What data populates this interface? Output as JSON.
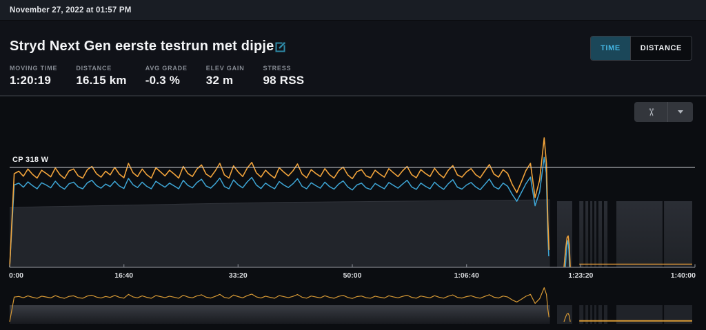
{
  "header": {
    "date": "November 27, 2022 at 01:57 PM",
    "title": "Stryd Next Gen eerste testrun met dipje"
  },
  "toggle": {
    "time_label": "TIME",
    "distance_label": "DISTANCE",
    "selected": "TIME"
  },
  "stats": {
    "items": [
      {
        "label": "MOVING TIME",
        "value": "1:20:19"
      },
      {
        "label": "DISTANCE",
        "value": "16.15 km"
      },
      {
        "label": "AVG GRADE",
        "value": "-0.3 %"
      },
      {
        "label": "ELEV GAIN",
        "value": "32 m"
      },
      {
        "label": "STRESS",
        "value": "98 RSS"
      }
    ]
  },
  "toolbar": {
    "crop_icon": "scissors-icon",
    "crop_glyph": "✂",
    "menu_icon": "chevron-down-icon"
  },
  "theme": {
    "accent_teal": "#44b5e2",
    "power_orange": "#f1a33b",
    "secondary_blue": "#3ea6d6",
    "mini_orange": "#d89a35",
    "cp_line": "#cdd0d5",
    "area_gray": "#22252b",
    "block_gray": "#262a31",
    "axis_gray": "#7f838a",
    "bg_dark": "#0b0d11"
  },
  "chart_data": {
    "type": "line",
    "x_unit": "elapsed time (h:mm:ss)",
    "x_range_seconds": [
      0,
      6000
    ],
    "x_ticks": [
      {
        "t": 0,
        "label": "0:00"
      },
      {
        "t": 1000,
        "label": "16:40"
      },
      {
        "t": 2000,
        "label": "33:20"
      },
      {
        "t": 3000,
        "label": "50:00"
      },
      {
        "t": 4000,
        "label": "1:06:40"
      },
      {
        "t": 5000,
        "label": "1:23:20"
      },
      {
        "t": 6000,
        "label": "1:40:00"
      }
    ],
    "cp_line": {
      "label": "CP 318 W",
      "value_watts": 318
    },
    "grid": false,
    "legend": "none",
    "series": [
      {
        "name": "power",
        "color": "#f1a33b",
        "t0": 0,
        "dt": 40,
        "values": [
          0,
          298,
          306,
          290,
          313,
          296,
          284,
          309,
          299,
          288,
          316,
          295,
          283,
          307,
          313,
          291,
          284,
          311,
          321,
          298,
          287,
          306,
          294,
          318,
          297,
          285,
          331,
          301,
          289,
          313,
          295,
          284,
          317,
          304,
          291,
          309,
          297,
          284,
          321,
          299,
          289,
          313,
          326,
          297,
          287,
          307,
          331,
          294,
          284,
          323,
          304,
          289,
          316,
          334,
          301,
          287,
          309,
          295,
          284,
          317,
          303,
          291,
          307,
          329,
          297,
          285,
          311,
          299,
          289,
          314,
          295,
          284,
          307,
          319,
          294,
          282,
          304,
          311,
          291,
          285,
          309,
          297,
          287,
          314,
          301,
          289,
          307,
          321,
          295,
          285,
          311,
          299,
          289,
          315,
          297,
          285,
          309,
          324,
          294,
          287,
          304,
          314,
          295,
          285,
          307,
          327,
          297,
          287,
          311,
          299,
          264,
          238,
          272,
          308,
          331,
          222,
          278,
          412
        ],
        "extra_points": [
          [
            4700,
            330
          ],
          [
            4712,
            150
          ],
          [
            4722,
            55
          ]
        ]
      },
      {
        "name": "secondary",
        "color": "#3ea6d6",
        "t0": 0,
        "dt": 40,
        "values": [
          0,
          262,
          268,
          255,
          272,
          260,
          250,
          269,
          262,
          253,
          274,
          258,
          249,
          266,
          271,
          256,
          250,
          269,
          277,
          260,
          252,
          265,
          257,
          274,
          259,
          251,
          283,
          263,
          254,
          271,
          258,
          250,
          274,
          264,
          255,
          268,
          259,
          250,
          277,
          261,
          253,
          270,
          280,
          259,
          252,
          266,
          284,
          257,
          250,
          278,
          263,
          253,
          272,
          286,
          262,
          251,
          268,
          258,
          250,
          273,
          262,
          254,
          266,
          282,
          258,
          250,
          269,
          260,
          252,
          271,
          257,
          249,
          265,
          275,
          256,
          246,
          262,
          268,
          253,
          248,
          267,
          258,
          250,
          270,
          261,
          252,
          265,
          277,
          256,
          248,
          268,
          258,
          250,
          271,
          258,
          248,
          266,
          279,
          255,
          249,
          262,
          270,
          256,
          247,
          264,
          281,
          257,
          249,
          268,
          258,
          232,
          210,
          238,
          266,
          287,
          196,
          240,
          350
        ],
        "extra_points": [
          [
            4698,
            300
          ],
          [
            4710,
            120
          ],
          [
            4720,
            35
          ]
        ]
      },
      {
        "name": "shaded-area",
        "color": "#22252b",
        "points": [
          [
            0,
            190
          ],
          [
            300,
            193
          ],
          [
            600,
            195
          ],
          [
            900,
            197
          ],
          [
            1200,
            199
          ],
          [
            1500,
            201
          ],
          [
            1800,
            203
          ],
          [
            2100,
            205
          ],
          [
            2400,
            207
          ],
          [
            2700,
            208
          ],
          [
            3000,
            209
          ],
          [
            3300,
            210
          ],
          [
            3600,
            211
          ],
          [
            3900,
            212
          ],
          [
            4200,
            213
          ],
          [
            4500,
            214
          ],
          [
            4730,
            215
          ]
        ]
      }
    ],
    "post_run": {
      "recovery_blip_power": [
        [
          4853,
          0
        ],
        [
          4868,
          60
        ],
        [
          4880,
          95
        ],
        [
          4890,
          100
        ],
        [
          4900,
          70
        ],
        [
          4908,
          0
        ]
      ],
      "recovery_blip_secondary": [
        [
          4865,
          0
        ],
        [
          4878,
          70
        ],
        [
          4888,
          85
        ],
        [
          4896,
          55
        ],
        [
          4902,
          0
        ]
      ],
      "trailing_power_watts": 10,
      "trailing_range": [
        4987,
        5976
      ],
      "dropout_blocks": [
        [
          4793,
          4926
        ],
        [
          4987,
          5023
        ],
        [
          5041,
          5065
        ],
        [
          5083,
          5101
        ],
        [
          5119,
          5137
        ],
        [
          5155,
          5185
        ],
        [
          5203,
          5234
        ],
        [
          5312,
          5716
        ],
        [
          5729,
          5976
        ]
      ]
    },
    "navigator": {
      "shows": "power",
      "band_range": [
        0,
        4730
      ]
    }
  }
}
